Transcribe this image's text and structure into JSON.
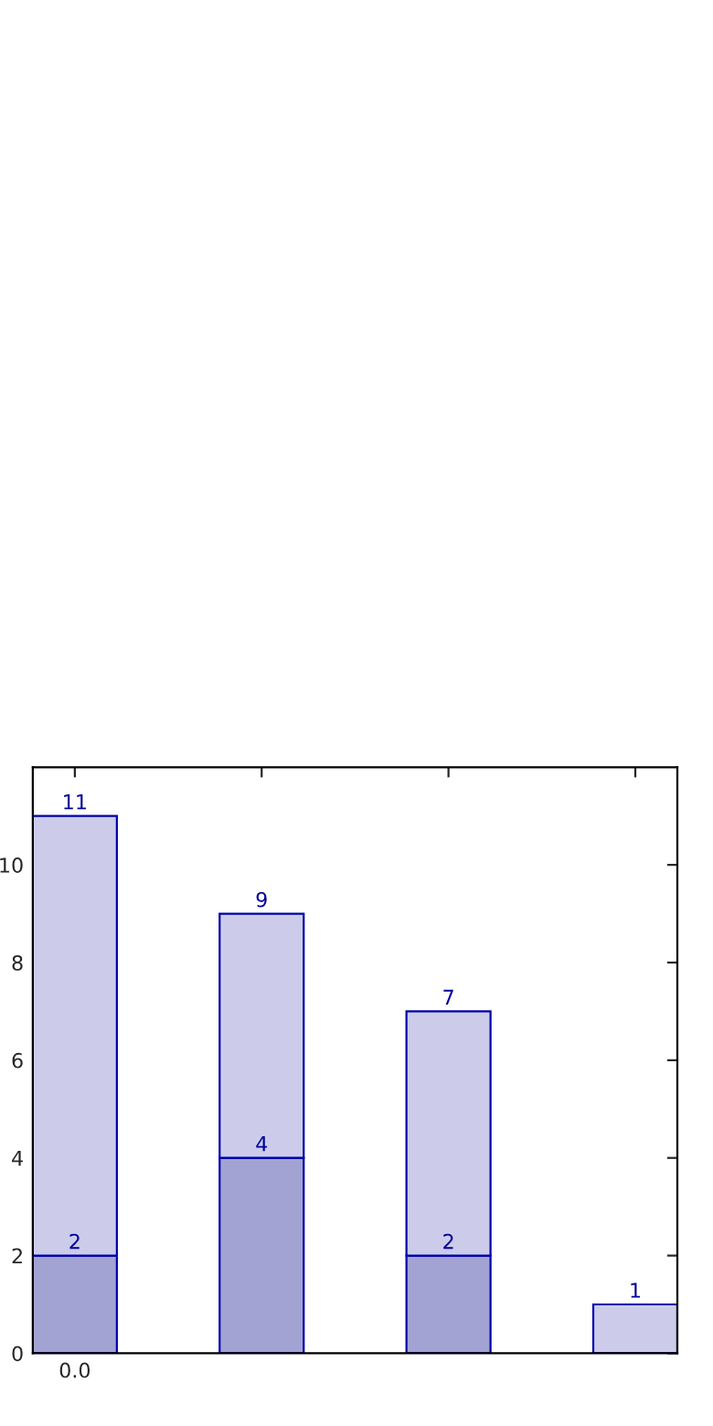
{
  "chart_data": {
    "type": "bar",
    "stacked": true,
    "categories": [
      "0.0",
      null,
      null,
      null
    ],
    "series": [
      {
        "color": "#a3a3d3",
        "values": [
          2,
          4,
          2,
          null
        ],
        "value_labels": [
          "2",
          "4",
          "2",
          null
        ]
      },
      {
        "color": "#ccccea",
        "values": [
          9,
          5,
          5,
          1
        ]
      }
    ],
    "totals": [
      "11",
      "9",
      "7",
      "1"
    ],
    "ylim": [
      0,
      12
    ],
    "yticks": [
      0,
      2,
      4,
      6,
      8,
      10
    ],
    "grid": false,
    "legend": false
  }
}
